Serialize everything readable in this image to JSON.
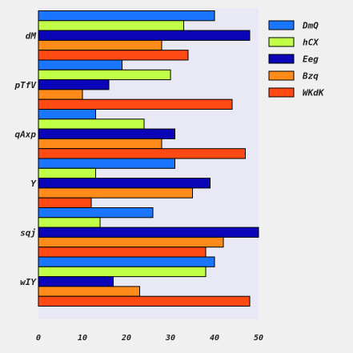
{
  "chart_data": {
    "type": "bar",
    "orientation": "horizontal",
    "categories": [
      "dM",
      "pTfV",
      "qAxp",
      "Y",
      "sqj",
      "wIY"
    ],
    "series": [
      {
        "name": "DmQ",
        "color": "#1a75ff",
        "values": [
          40,
          19,
          13,
          31,
          26,
          40
        ]
      },
      {
        "name": "hCX",
        "color": "#c2ff47",
        "values": [
          33,
          30,
          24,
          13,
          14,
          38
        ]
      },
      {
        "name": "Eeg",
        "color": "#0a05b8",
        "values": [
          48,
          16,
          31,
          39,
          50,
          17
        ]
      },
      {
        "name": "Bzq",
        "color": "#ff8c1a",
        "values": [
          28,
          10,
          28,
          35,
          42,
          23
        ]
      },
      {
        "name": "WKdK",
        "color": "#ff4a14",
        "values": [
          34,
          44,
          47,
          12,
          38,
          48
        ]
      }
    ],
    "xticks": [
      "0",
      "10",
      "20",
      "30",
      "40",
      "50"
    ],
    "xlim": [
      0,
      50
    ],
    "title": "",
    "xlabel": "",
    "ylabel": "",
    "grid": false,
    "legend_position": "top-right",
    "plot_background": "#e9e9f5",
    "page_background": "#f0f0f0"
  }
}
